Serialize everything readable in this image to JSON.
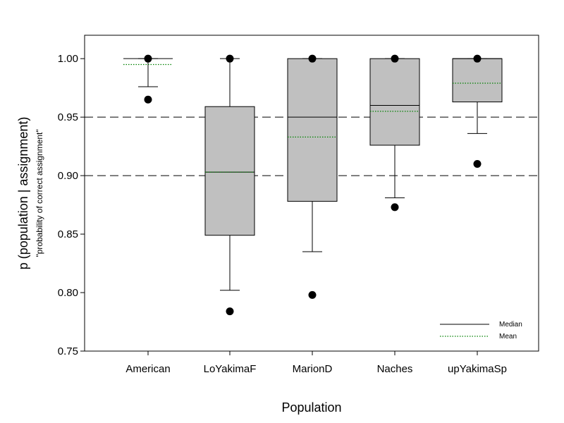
{
  "chart_data": {
    "type": "box",
    "categories": [
      "American",
      "LoYakimaF",
      "MarionD",
      "Naches",
      "upYakimaSp"
    ],
    "xlabel": "Population",
    "ylabel": "p (population | assignment)",
    "ylabel_sub": "\"probability of correct assignment\"",
    "ylim": [
      0.75,
      1.02
    ],
    "yticks": [
      "0.75",
      "0.80",
      "0.85",
      "0.90",
      "0.95",
      "1.00"
    ],
    "reference_lines": [
      0.9,
      0.95
    ],
    "boxes": [
      {
        "q1": 1.0,
        "median": 1.0,
        "q3": 1.0,
        "whisker_low": 0.976,
        "whisker_high": 1.0,
        "mean": 0.995,
        "outliers": [
          1.0,
          0.965
        ]
      },
      {
        "q1": 0.849,
        "median": 0.903,
        "q3": 0.959,
        "whisker_low": 0.802,
        "whisker_high": 1.0,
        "mean": 0.903,
        "outliers": [
          1.0,
          0.784
        ]
      },
      {
        "q1": 0.878,
        "median": 0.95,
        "q3": 1.0,
        "whisker_low": 0.835,
        "whisker_high": 1.0,
        "mean": 0.933,
        "outliers": [
          1.0,
          0.798
        ]
      },
      {
        "q1": 0.926,
        "median": 0.96,
        "q3": 1.0,
        "whisker_low": 0.881,
        "whisker_high": 1.0,
        "mean": 0.955,
        "outliers": [
          1.0,
          0.873
        ]
      },
      {
        "q1": 0.963,
        "median": 1.0,
        "q3": 1.0,
        "whisker_low": 0.936,
        "whisker_high": 1.0,
        "mean": 0.979,
        "outliers": [
          1.0,
          0.91
        ]
      }
    ],
    "legend": {
      "position": "bottom-right",
      "items": [
        {
          "label": "Median",
          "style": "solid"
        },
        {
          "label": "Mean",
          "style": "dotted"
        }
      ]
    },
    "colors": {
      "box_fill": "#c0c0c0",
      "mean_line": "#008000",
      "median_line": "#000000"
    },
    "grid": false
  }
}
